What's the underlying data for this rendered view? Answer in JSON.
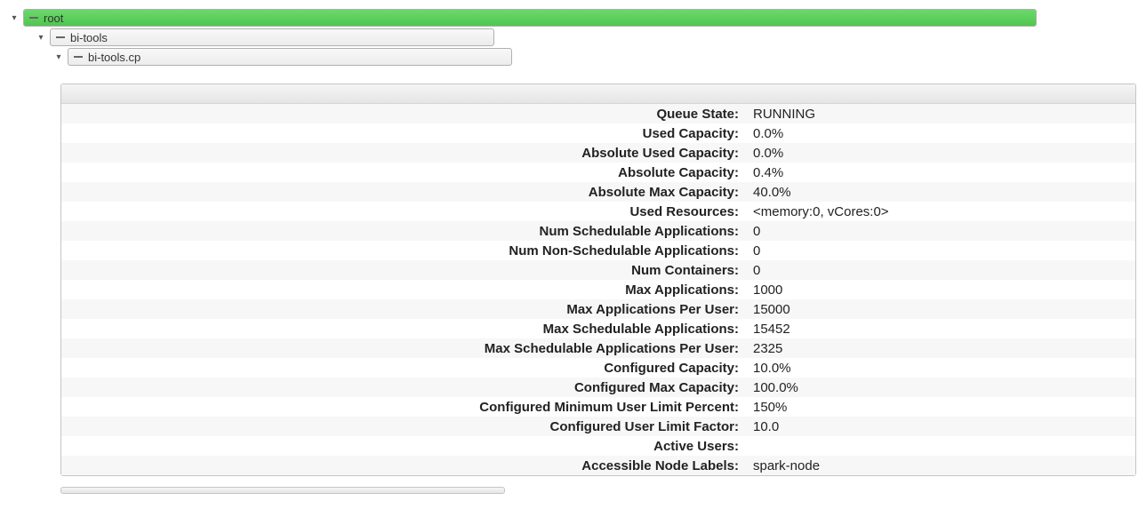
{
  "tree": {
    "root": {
      "label": "root",
      "fill_percent": 100,
      "fill_color": "#5ecb5e"
    },
    "child1": {
      "label": "bi-tools",
      "fill_percent": 0
    },
    "child2": {
      "label": "bi-tools.cp",
      "fill_percent": 0
    }
  },
  "details": {
    "rows": [
      {
        "label": "Queue State:",
        "value": "RUNNING"
      },
      {
        "label": "Used Capacity:",
        "value": "0.0%"
      },
      {
        "label": "Absolute Used Capacity:",
        "value": "0.0%"
      },
      {
        "label": "Absolute Capacity:",
        "value": "0.4%"
      },
      {
        "label": "Absolute Max Capacity:",
        "value": "40.0%"
      },
      {
        "label": "Used Resources:",
        "value": "<memory:0, vCores:0>"
      },
      {
        "label": "Num Schedulable Applications:",
        "value": "0"
      },
      {
        "label": "Num Non-Schedulable Applications:",
        "value": "0"
      },
      {
        "label": "Num Containers:",
        "value": "0"
      },
      {
        "label": "Max Applications:",
        "value": "1000"
      },
      {
        "label": "Max Applications Per User:",
        "value": "15000"
      },
      {
        "label": "Max Schedulable Applications:",
        "value": "15452"
      },
      {
        "label": "Max Schedulable Applications Per User:",
        "value": "2325"
      },
      {
        "label": "Configured Capacity:",
        "value": "10.0%"
      },
      {
        "label": "Configured Max Capacity:",
        "value": "100.0%"
      },
      {
        "label": "Configured Minimum User Limit Percent:",
        "value": "150%"
      },
      {
        "label": "Configured User Limit Factor:",
        "value": "10.0"
      },
      {
        "label": "Active Users:",
        "value": ""
      },
      {
        "label": "Accessible Node Labels:",
        "value": "spark-node"
      }
    ]
  },
  "styling": {
    "root_bar_bg": "linear-gradient(to bottom, #6cd86c, #4fc74f)",
    "child_bar_bg": "linear-gradient(to bottom, #f8f8f8, #ececec)",
    "panel_border": "#c5c5c5",
    "row_odd_bg": "#f7f7f7",
    "row_even_bg": "#ffffff",
    "text_color": "#222222"
  }
}
